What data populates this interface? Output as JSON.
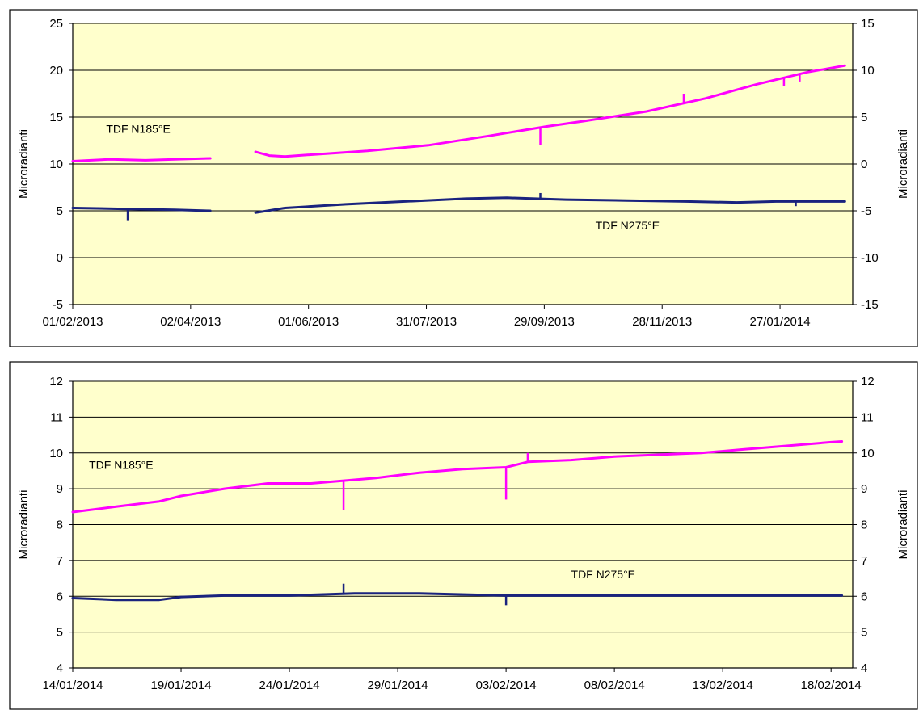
{
  "chart_data": [
    {
      "type": "line",
      "title": "",
      "ylabel_left": "Microradianti",
      "ylabel_right": "Microradianti",
      "ylim_left": [
        -5,
        25
      ],
      "ylim_right": [
        -15,
        15
      ],
      "yticks_left": [
        -5,
        0,
        5,
        10,
        15,
        20,
        25
      ],
      "yticks_right": [
        -15,
        -10,
        -5,
        0,
        5,
        10,
        15
      ],
      "xlim": [
        "2013-02-01",
        "2014-03-05"
      ],
      "xticks": [
        "01/02/2013",
        "02/04/2013",
        "01/06/2013",
        "31/07/2013",
        "29/09/2013",
        "28/11/2013",
        "27/01/2014"
      ],
      "grid": true,
      "plot_background": "#ffffcc",
      "series": [
        {
          "name": "TDF N185°E",
          "color": "#ff00ff",
          "segments": [
            [
              [
                "2013-02-01",
                10.3
              ],
              [
                "2013-02-20",
                10.5
              ],
              [
                "2013-03-10",
                10.4
              ],
              [
                "2013-03-25",
                10.5
              ],
              [
                "2013-04-12",
                10.6
              ]
            ],
            [
              [
                "2013-05-05",
                11.3
              ],
              [
                "2013-05-12",
                10.9
              ],
              [
                "2013-05-20",
                10.8
              ],
              [
                "2013-06-10",
                11.1
              ],
              [
                "2013-07-01",
                11.4
              ],
              [
                "2013-08-01",
                12.0
              ],
              [
                "2013-09-01",
                13.0
              ],
              [
                "2013-09-30",
                14.0
              ],
              [
                "2013-10-20",
                14.6
              ],
              [
                "2013-11-20",
                15.6
              ],
              [
                "2013-12-20",
                17.0
              ],
              [
                "2014-01-15",
                18.5
              ],
              [
                "2014-02-10",
                19.8
              ],
              [
                "2014-03-01",
                20.5
              ]
            ]
          ],
          "spikes": [
            {
              "x": "2013-09-27",
              "from": 14.0,
              "to": 12.0
            },
            {
              "x": "2013-12-09",
              "from": 16.4,
              "to": 17.5
            },
            {
              "x": "2014-01-29",
              "from": 19.3,
              "to": 18.3
            },
            {
              "x": "2014-02-06",
              "from": 19.6,
              "to": 18.8
            }
          ]
        },
        {
          "name": "TDF N275°E",
          "color": "#1a237e",
          "segments": [
            [
              [
                "2013-02-01",
                5.3
              ],
              [
                "2013-03-01",
                5.2
              ],
              [
                "2013-03-25",
                5.1
              ],
              [
                "2013-04-12",
                5.0
              ]
            ],
            [
              [
                "2013-05-05",
                4.8
              ],
              [
                "2013-05-20",
                5.3
              ],
              [
                "2013-06-20",
                5.7
              ],
              [
                "2013-07-20",
                6.0
              ],
              [
                "2013-08-20",
                6.3
              ],
              [
                "2013-09-10",
                6.4
              ],
              [
                "2013-10-10",
                6.2
              ],
              [
                "2013-11-10",
                6.1
              ],
              [
                "2013-12-10",
                6.0
              ],
              [
                "2014-01-05",
                5.9
              ],
              [
                "2014-01-25",
                6.0
              ],
              [
                "2014-03-01",
                6.0
              ]
            ]
          ],
          "spikes": [
            {
              "x": "2013-03-01",
              "from": 5.2,
              "to": 4.0
            },
            {
              "x": "2013-09-27",
              "from": 6.3,
              "to": 6.9
            },
            {
              "x": "2014-02-04",
              "from": 6.0,
              "to": 5.5
            }
          ]
        }
      ],
      "annotations": [
        {
          "text": "TDF N185°E",
          "x": "2013-02-18",
          "y": 13.3
        },
        {
          "text": "TDF N275°E",
          "x": "2013-10-25",
          "y": 3.0
        }
      ]
    },
    {
      "type": "line",
      "title": "",
      "ylabel_left": "Microradianti",
      "ylabel_right": "Microradianti",
      "ylim_left": [
        4,
        12
      ],
      "ylim_right": [
        4,
        12
      ],
      "yticks_left": [
        4,
        5,
        6,
        7,
        8,
        9,
        10,
        11,
        12
      ],
      "yticks_right": [
        4,
        5,
        6,
        7,
        8,
        9,
        10,
        11,
        12
      ],
      "xlim": [
        "2014-01-14",
        "2014-02-19"
      ],
      "xticks": [
        "14/01/2014",
        "19/01/2014",
        "24/01/2014",
        "29/01/2014",
        "03/02/2014",
        "08/02/2014",
        "13/02/2014",
        "18/02/2014"
      ],
      "grid": true,
      "plot_background": "#ffffcc",
      "series": [
        {
          "name": "TDF N185°E",
          "color": "#ff00ff",
          "segments": [
            [
              [
                "2014-01-14",
                8.35
              ],
              [
                "2014-01-16",
                8.5
              ],
              [
                "2014-01-18",
                8.65
              ],
              [
                "2014-01-19",
                8.8
              ],
              [
                "2014-01-21",
                9.0
              ],
              [
                "2014-01-23",
                9.15
              ],
              [
                "2014-01-25",
                9.15
              ],
              [
                "2014-01-26",
                9.2
              ],
              [
                "2014-01-28",
                9.3
              ],
              [
                "2014-01-30",
                9.45
              ],
              [
                "2014-02-01",
                9.55
              ],
              [
                "2014-02-03",
                9.6
              ],
              [
                "2014-02-04",
                9.75
              ],
              [
                "2014-02-06",
                9.8
              ],
              [
                "2014-02-08",
                9.9
              ],
              [
                "2014-02-10",
                9.95
              ],
              [
                "2014-02-12",
                10.0
              ],
              [
                "2014-02-14",
                10.1
              ],
              [
                "2014-02-16",
                10.2
              ],
              [
                "2014-02-18",
                10.3
              ],
              [
                "2014-02-18T12:00",
                10.32
              ]
            ]
          ],
          "spikes": [
            {
              "x": "2014-01-26T12:00",
              "from": 9.2,
              "to": 8.4
            },
            {
              "x": "2014-02-03",
              "from": 9.6,
              "to": 8.7
            },
            {
              "x": "2014-02-04",
              "from": 9.75,
              "to": 10.0
            }
          ]
        },
        {
          "name": "TDF N275°E",
          "color": "#1a237e",
          "segments": [
            [
              [
                "2014-01-14",
                5.95
              ],
              [
                "2014-01-16",
                5.9
              ],
              [
                "2014-01-18",
                5.9
              ],
              [
                "2014-01-19",
                5.98
              ],
              [
                "2014-01-21",
                6.02
              ],
              [
                "2014-01-24",
                6.02
              ],
              [
                "2014-01-27",
                6.08
              ],
              [
                "2014-01-30",
                6.08
              ],
              [
                "2014-02-03",
                6.02
              ],
              [
                "2014-02-08",
                6.02
              ],
              [
                "2014-02-13",
                6.02
              ],
              [
                "2014-02-18T12:00",
                6.02
              ]
            ]
          ],
          "spikes": [
            {
              "x": "2014-01-26T12:00",
              "from": 6.05,
              "to": 6.35
            },
            {
              "x": "2014-02-03",
              "from": 6.0,
              "to": 5.75
            }
          ]
        }
      ],
      "annotations": [
        {
          "text": "TDF N185°E",
          "x": "2014-01-14T18:00",
          "y": 9.55
        },
        {
          "text": "TDF N275°E",
          "x": "2014-02-06",
          "y": 6.5
        }
      ]
    }
  ]
}
